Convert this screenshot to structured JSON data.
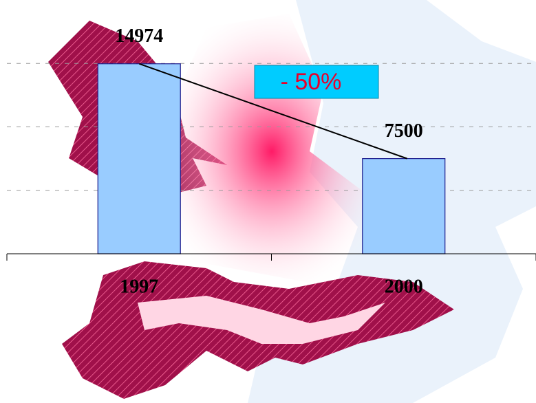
{
  "chart_data": {
    "type": "bar",
    "categories": [
      "1997",
      "2000"
    ],
    "values": [
      14974,
      7500
    ],
    "color": "#99ccff",
    "ylim": [
      0,
      20000
    ],
    "yticks": [
      5000,
      10000,
      15000
    ],
    "grid": true,
    "annotation": "- 50%"
  }
}
